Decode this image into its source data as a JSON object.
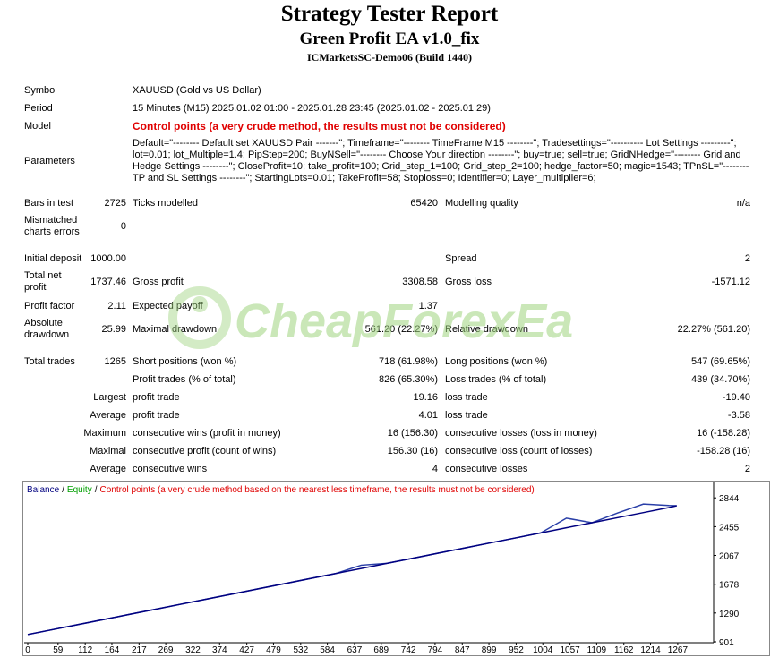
{
  "header": {
    "title": "Strategy Tester Report",
    "subtitle": "Green Profit EA v1.0_fix",
    "server": "ICMarketsSC-Demo06 (Build 1440)"
  },
  "watermark": "CheapForexEa",
  "report": {
    "rows": [
      [
        "Symbol",
        null,
        "XAUUSD (Gold vs US Dollar)"
      ],
      [
        "Period",
        null,
        "15 Minutes (M15) 2025.01.02 01:00 - 2025.01.28 23:45 (2025.01.02 - 2025.01.29)"
      ],
      [
        "Model",
        null,
        "Control points (a very crude method, the results must not be considered)"
      ],
      [
        "Parameters",
        null,
        "Default=\"-------- Default set XAUUSD Pair -------\"; Timeframe=\"-------- TimeFrame M15 --------\"; Tradesettings=\"---------- Lot Settings ---------\"; lot=0.01; lot_Multiple=1.4; PipStep=200; BuyNSell=\"-------- Choose Your direction --------\"; buy=true; sell=true; GridNHedge=\"-------- Grid and Hedge Settings --------\"; CloseProfit=10; take_profit=100; Grid_step_1=100; Grid_step_2=100; hedge_factor=50; magic=1543; TPnSL=\"-------- TP and SL Settings --------\"; StartingLots=0.01; TakeProfit=58; Stoploss=0; Identifier=0; Layer_multiplier=6;"
      ],
      [
        "Bars in test",
        "2725",
        "Ticks modelled",
        "65420",
        "Modelling quality",
        "n/a"
      ],
      [
        "Mismatched charts errors",
        "0"
      ],
      [
        "Initial deposit",
        "1000.00",
        null,
        null,
        "Spread",
        "2"
      ],
      [
        "Total net profit",
        "1737.46",
        "Gross profit",
        "3308.58",
        "Gross loss",
        "-1571.12"
      ],
      [
        "Profit factor",
        "2.11",
        "Expected payoff",
        "1.37"
      ],
      [
        "Absolute drawdown",
        "25.99",
        "Maximal drawdown",
        "561.20 (22.27%)",
        "Relative drawdown",
        "22.27% (561.20)"
      ],
      [
        "Total trades",
        "1265",
        "Short positions (won %)",
        "718 (61.98%)",
        "Long positions (won %)",
        "547 (69.65%)"
      ],
      [
        null,
        null,
        "Profit trades (% of total)",
        "826 (65.30%)",
        "Loss trades (% of total)",
        "439 (34.70%)"
      ],
      [
        null,
        "Largest",
        "profit trade",
        "19.16",
        "loss trade",
        "-19.40"
      ],
      [
        null,
        "Average",
        "profit trade",
        "4.01",
        "loss trade",
        "-3.58"
      ],
      [
        null,
        "Maximum",
        "consecutive wins (profit in money)",
        "16 (156.30)",
        "consecutive losses (loss in money)",
        "16 (-158.28)"
      ],
      [
        null,
        "Maximal",
        "consecutive profit (count of wins)",
        "156.30 (16)",
        "consecutive loss (count of losses)",
        "-158.28 (16)"
      ],
      [
        null,
        "Average",
        "consecutive wins",
        "4",
        "consecutive losses",
        "2"
      ]
    ]
  },
  "chart_data": {
    "type": "line",
    "legend_separator": "/",
    "control_points_note": "Control points (a very crude method based on the nearest less timeframe, the results must not be considered)",
    "x": [
      0,
      50,
      100,
      150,
      200,
      250,
      300,
      350,
      400,
      450,
      500,
      550,
      600,
      650,
      700,
      750,
      800,
      850,
      900,
      950,
      1000,
      1050,
      1100,
      1150,
      1200,
      1250,
      1265
    ],
    "series": [
      {
        "name": "Balance",
        "color": "#000080",
        "values": [
          1000,
          1068,
          1137,
          1205,
          1274,
          1342,
          1411,
          1480,
          1548,
          1617,
          1685,
          1754,
          1822,
          1891,
          1960,
          2028,
          2097,
          2165,
          2234,
          2302,
          2371,
          2440,
          2508,
          2577,
          2645,
          2714,
          2737.46
        ]
      },
      {
        "name": "Equity",
        "color": "#2a3fa8",
        "values": [
          1000,
          1068,
          1137,
          1205,
          1274,
          1342,
          1411,
          1480,
          1548,
          1617,
          1685,
          1754,
          1822,
          1935,
          1960,
          2028,
          2097,
          2165,
          2234,
          2302,
          2371,
          2570,
          2508,
          2640,
          2760,
          2740,
          2737.46
        ]
      }
    ],
    "xlim": [
      -7,
      1337
    ],
    "ylim": [
      889,
      3064
    ],
    "xticks": [
      0,
      59,
      112,
      164,
      217,
      269,
      322,
      374,
      427,
      479,
      532,
      584,
      637,
      689,
      742,
      794,
      847,
      899,
      952,
      1004,
      1057,
      1109,
      1162,
      1214,
      1267
    ],
    "yticks": [
      901,
      1290,
      1678,
      2067,
      2455,
      2844
    ]
  }
}
